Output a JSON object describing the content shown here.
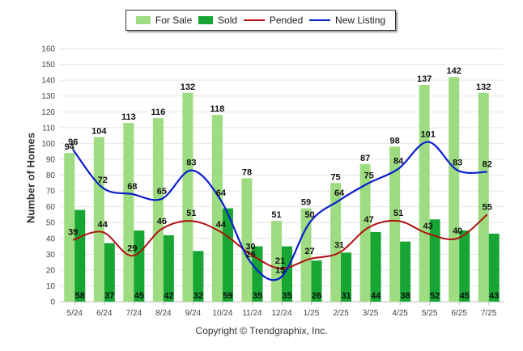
{
  "colors": {
    "for_sale": "#9ddc80",
    "sold": "#17a533",
    "pended": "#b01010",
    "new_listing": "#0a1ecc",
    "grid": "#e6e6e6",
    "axis_text": "#444444"
  },
  "legend": {
    "for_sale": "For Sale",
    "sold": "Sold",
    "pended": "Pended",
    "new_listing": "New Listing"
  },
  "copyright": "Copyright © Trendgraphix, Inc.",
  "chart_data": {
    "type": "bar",
    "title": "",
    "xlabel": "",
    "ylabel": "Number of Homes",
    "ylim": [
      0,
      160
    ],
    "yticks": [
      0,
      10,
      20,
      30,
      40,
      50,
      60,
      70,
      80,
      90,
      100,
      110,
      120,
      130,
      140,
      150,
      160
    ],
    "grid": true,
    "legend_position": "top-center",
    "categories": [
      "5/24",
      "6/24",
      "7/24",
      "8/24",
      "9/24",
      "10/24",
      "11/24",
      "12/24",
      "1/25",
      "2/25",
      "3/25",
      "4/25",
      "5/25",
      "6/25",
      "7/25"
    ],
    "series": [
      {
        "name": "For Sale",
        "type": "bar",
        "values": [
          94,
          104,
          113,
          116,
          132,
          118,
          78,
          51,
          59,
          75,
          87,
          98,
          137,
          142,
          132
        ]
      },
      {
        "name": "Sold",
        "type": "bar",
        "values": [
          58,
          37,
          45,
          42,
          32,
          59,
          35,
          35,
          26,
          31,
          44,
          38,
          52,
          45,
          43
        ]
      },
      {
        "name": "Pended",
        "type": "line",
        "values": [
          39,
          44,
          29,
          46,
          51,
          44,
          30,
          21,
          27,
          31,
          47,
          51,
          43,
          40,
          55
        ]
      },
      {
        "name": "New Listing",
        "type": "line",
        "values": [
          96,
          72,
          68,
          65,
          83,
          64,
          25,
          15,
          50,
          64,
          75,
          84,
          101,
          83,
          82
        ]
      }
    ]
  }
}
